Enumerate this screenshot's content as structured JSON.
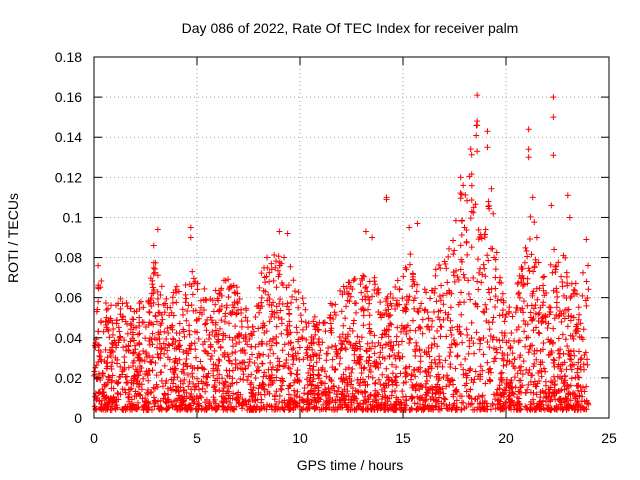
{
  "chart_data": {
    "type": "scatter",
    "title": "Day 086 of 2022, Rate Of TEC Index for receiver palm",
    "xlabel": "GPS time / hours",
    "ylabel": "ROTI / TECUs",
    "xlim": [
      0,
      25
    ],
    "ylim": [
      0,
      0.18
    ],
    "x_ticks": [
      "0",
      "5",
      "10",
      "15",
      "20",
      "25"
    ],
    "y_ticks": [
      "0",
      "0.02",
      "0.04",
      "0.06",
      "0.08",
      "0.1",
      "0.12",
      "0.14",
      "0.16",
      "0.18"
    ],
    "grid": true,
    "marker": "+",
    "series_color": "#ff0000",
    "envelope": {
      "x": [
        0.0,
        0.3,
        0.6,
        1.0,
        1.4,
        1.8,
        2.2,
        2.6,
        2.9,
        3.2,
        3.6,
        4.0,
        4.5,
        4.8,
        5.2,
        5.6,
        6.0,
        6.4,
        6.8,
        7.2,
        7.6,
        8.0,
        8.5,
        9.0,
        9.3,
        9.6,
        10.0,
        10.5,
        11.0,
        11.5,
        12.0,
        12.5,
        13.0,
        13.5,
        14.0,
        14.5,
        15.0,
        15.3,
        15.7,
        16.0,
        16.5,
        17.0,
        17.5,
        17.8,
        18.2,
        18.6,
        18.9,
        19.3,
        19.7,
        20.0,
        20.4,
        20.8,
        21.2,
        21.6,
        22.0,
        22.4,
        22.8,
        23.2,
        23.6,
        23.9
      ],
      "y": [
        0.072,
        0.073,
        0.058,
        0.055,
        0.063,
        0.057,
        0.06,
        0.063,
        0.086,
        0.067,
        0.063,
        0.066,
        0.067,
        0.075,
        0.067,
        0.063,
        0.066,
        0.07,
        0.069,
        0.062,
        0.055,
        0.072,
        0.078,
        0.086,
        0.085,
        0.073,
        0.065,
        0.052,
        0.049,
        0.06,
        0.065,
        0.069,
        0.071,
        0.073,
        0.063,
        0.064,
        0.075,
        0.085,
        0.07,
        0.063,
        0.074,
        0.085,
        0.092,
        0.12,
        0.13,
        0.155,
        0.125,
        0.115,
        0.072,
        0.055,
        0.06,
        0.078,
        0.108,
        0.085,
        0.063,
        0.098,
        0.085,
        0.068,
        0.07,
        0.085
      ]
    },
    "outliers": [
      {
        "x": 3.1,
        "y": 0.094
      },
      {
        "x": 4.7,
        "y": 0.095
      },
      {
        "x": 4.7,
        "y": 0.09
      },
      {
        "x": 8.4,
        "y": 0.08
      },
      {
        "x": 9.0,
        "y": 0.093
      },
      {
        "x": 9.4,
        "y": 0.092
      },
      {
        "x": 13.2,
        "y": 0.093
      },
      {
        "x": 13.5,
        "y": 0.09
      },
      {
        "x": 14.2,
        "y": 0.11
      },
      {
        "x": 14.2,
        "y": 0.109
      },
      {
        "x": 15.3,
        "y": 0.095
      },
      {
        "x": 15.7,
        "y": 0.097
      },
      {
        "x": 17.8,
        "y": 0.12
      },
      {
        "x": 18.6,
        "y": 0.161
      },
      {
        "x": 18.6,
        "y": 0.148
      },
      {
        "x": 18.6,
        "y": 0.146
      },
      {
        "x": 18.6,
        "y": 0.133
      },
      {
        "x": 19.1,
        "y": 0.143
      },
      {
        "x": 19.1,
        "y": 0.135
      },
      {
        "x": 21.1,
        "y": 0.144
      },
      {
        "x": 21.1,
        "y": 0.134
      },
      {
        "x": 21.1,
        "y": 0.13
      },
      {
        "x": 21.3,
        "y": 0.11
      },
      {
        "x": 21.5,
        "y": 0.09
      },
      {
        "x": 22.3,
        "y": 0.16
      },
      {
        "x": 22.3,
        "y": 0.15
      },
      {
        "x": 22.3,
        "y": 0.131
      },
      {
        "x": 22.2,
        "y": 0.106
      },
      {
        "x": 23.0,
        "y": 0.111
      },
      {
        "x": 23.1,
        "y": 0.1
      },
      {
        "x": 23.9,
        "y": 0.089
      },
      {
        "x": 2.9,
        "y": 0.086
      },
      {
        "x": 0.2,
        "y": 0.076
      }
    ]
  }
}
